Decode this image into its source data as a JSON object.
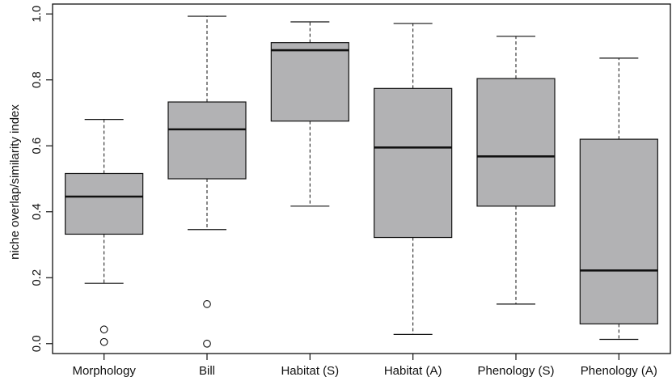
{
  "chart_data": {
    "type": "boxplot",
    "title": "",
    "xlabel": "",
    "ylabel": "niche overlap/similarity index",
    "ylim": [
      -0.03,
      1.03
    ],
    "yticks": [
      0.0,
      0.2,
      0.4,
      0.6,
      0.8,
      1.0
    ],
    "ytick_labels": [
      "0.0",
      "0.2",
      "0.4",
      "0.6",
      "0.8",
      "1.0"
    ],
    "grid": false,
    "legend": "none",
    "colors": {
      "box_fill": "#b2b2b4",
      "stroke": "#111111"
    },
    "categories": [
      "Morphology",
      "Bill",
      "Habitat (S)",
      "Habitat (A)",
      "Phenology (S)",
      "Phenology (A)"
    ],
    "boxes": [
      {
        "category": "Morphology",
        "whisker_low": 0.183,
        "q1": 0.332,
        "median": 0.446,
        "q3": 0.516,
        "whisker_high": 0.68,
        "outliers": [
          0.043,
          0.005
        ]
      },
      {
        "category": "Bill",
        "whisker_low": 0.346,
        "q1": 0.5,
        "median": 0.65,
        "q3": 0.733,
        "whisker_high": 0.993,
        "outliers": [
          0.12,
          0.0
        ]
      },
      {
        "category": "Habitat (S)",
        "whisker_low": 0.417,
        "q1": 0.675,
        "median": 0.89,
        "q3": 0.913,
        "whisker_high": 0.976,
        "outliers": []
      },
      {
        "category": "Habitat (A)",
        "whisker_low": 0.028,
        "q1": 0.322,
        "median": 0.595,
        "q3": 0.774,
        "whisker_high": 0.971,
        "outliers": []
      },
      {
        "category": "Phenology (S)",
        "whisker_low": 0.12,
        "q1": 0.417,
        "median": 0.568,
        "q3": 0.804,
        "whisker_high": 0.932,
        "outliers": []
      },
      {
        "category": "Phenology (A)",
        "whisker_low": 0.013,
        "q1": 0.06,
        "median": 0.222,
        "q3": 0.62,
        "whisker_high": 0.866,
        "outliers": []
      }
    ]
  }
}
